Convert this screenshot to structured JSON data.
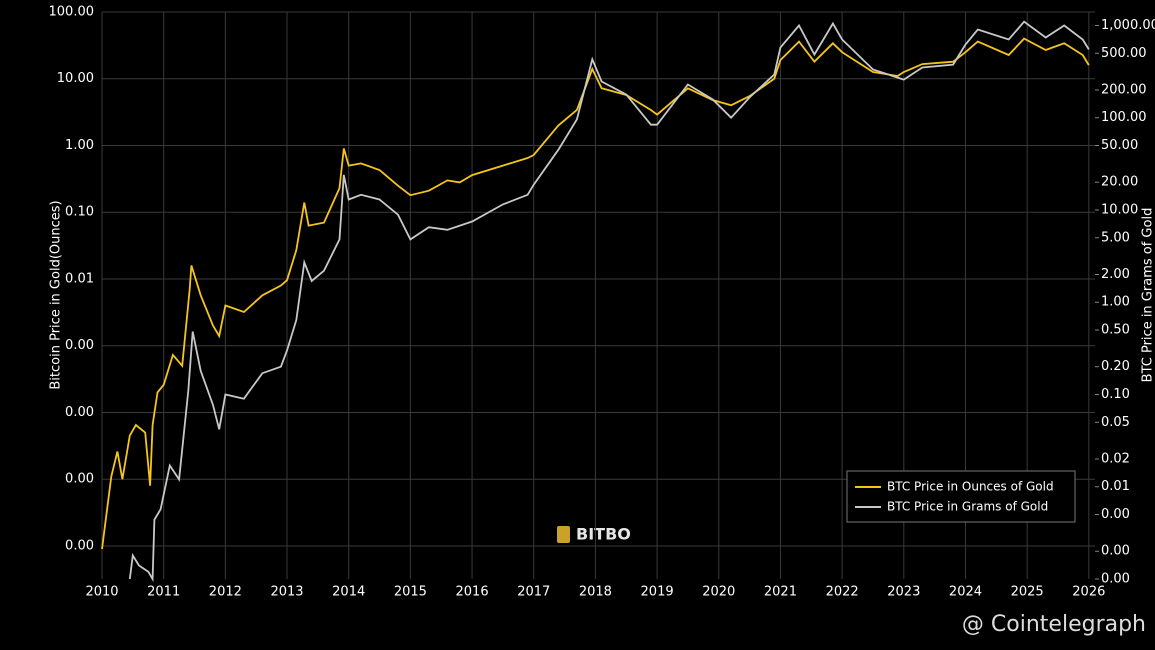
{
  "chart_data": {
    "type": "line",
    "y_label": "Bitcoin Price in Gold(Ounces)",
    "y2_label": "BTC Price in Grams of Gold",
    "watermark": "BITBO",
    "source": "@ Cointelegraph",
    "log_scale": true,
    "grid": true,
    "legend": "lower right",
    "xlim": [
      2010,
      2026.1
    ],
    "xticks": [
      2010,
      2011,
      2012,
      2013,
      2014,
      2015,
      2016,
      2017,
      2018,
      2019,
      2020,
      2021,
      2022,
      2023,
      2024,
      2025,
      2026
    ],
    "ylim": [
      3.2e-07,
      100
    ],
    "yticks": [
      {
        "value": 100,
        "label": "100.00"
      },
      {
        "value": 10,
        "label": "10.00"
      },
      {
        "value": 1,
        "label": "1.00"
      },
      {
        "value": 0.1,
        "label": "0.10"
      },
      {
        "value": 0.01,
        "label": "0.01"
      },
      {
        "value": 0.001,
        "label": "0.00"
      },
      {
        "value": 0.0001,
        "label": "0.00"
      },
      {
        "value": 1e-05,
        "label": "0.00"
      },
      {
        "value": 1e-06,
        "label": "0.00"
      }
    ],
    "y2lim": [
      0.001,
      1400
    ],
    "y2ticks": [
      {
        "value": 1000,
        "label": "1,000.00"
      },
      {
        "value": 500,
        "label": "500.00"
      },
      {
        "value": 200,
        "label": "200.00"
      },
      {
        "value": 100,
        "label": "100.00"
      },
      {
        "value": 50,
        "label": "50.00"
      },
      {
        "value": 20,
        "label": "20.00"
      },
      {
        "value": 10,
        "label": "10.00"
      },
      {
        "value": 5,
        "label": "5.00"
      },
      {
        "value": 2,
        "label": "2.00"
      },
      {
        "value": 1,
        "label": "1.00"
      },
      {
        "value": 0.5,
        "label": "0.50"
      },
      {
        "value": 0.2,
        "label": "0.20"
      },
      {
        "value": 0.1,
        "label": "0.10"
      },
      {
        "value": 0.05,
        "label": "0.05"
      },
      {
        "value": 0.02,
        "label": "0.02"
      },
      {
        "value": 0.01,
        "label": "0.01"
      },
      {
        "value": 0.005,
        "label": "0.00"
      },
      {
        "value": 0.002,
        "label": "0.00"
      },
      {
        "value": 0.001,
        "label": "0.00"
      }
    ],
    "series": [
      {
        "name": "BTC Price in Ounces of Gold",
        "color": "#f5c518",
        "x": [
          2010.0,
          2010.15,
          2010.25,
          2010.33,
          2010.45,
          2010.55,
          2010.7,
          2010.78,
          2010.82,
          2010.9,
          2011.0,
          2011.15,
          2011.3,
          2011.42,
          2011.45,
          2011.6,
          2011.8,
          2011.9,
          2012.0,
          2012.3,
          2012.6,
          2012.9,
          2013.0,
          2013.15,
          2013.28,
          2013.35,
          2013.6,
          2013.85,
          2013.92,
          2014.0,
          2014.2,
          2014.5,
          2014.8,
          2015.0,
          2015.3,
          2015.6,
          2015.8,
          2016.0,
          2016.5,
          2016.9,
          2017.0,
          2017.4,
          2017.7,
          2017.95,
          2018.1,
          2018.5,
          2018.9,
          2019.0,
          2019.5,
          2019.9,
          2020.2,
          2020.5,
          2020.9,
          2021.0,
          2021.3,
          2021.55,
          2021.85,
          2022.0,
          2022.5,
          2022.9,
          2023.0,
          2023.3,
          2023.8,
          2024.0,
          2024.2,
          2024.7,
          2024.95,
          2025.3,
          2025.6,
          2025.9,
          2026.0
        ],
        "values": [
          9e-07,
          1.1e-05,
          2.6e-05,
          1e-05,
          4.5e-05,
          6.5e-05,
          5e-05,
          8e-06,
          6.5e-05,
          0.0002,
          0.00026,
          0.00073,
          0.0005,
          0.0068,
          0.016,
          0.0057,
          0.002,
          0.0014,
          0.004,
          0.0032,
          0.0057,
          0.008,
          0.0096,
          0.027,
          0.14,
          0.063,
          0.07,
          0.23,
          0.9,
          0.5,
          0.54,
          0.43,
          0.25,
          0.18,
          0.21,
          0.3,
          0.28,
          0.36,
          0.5,
          0.65,
          0.72,
          2.0,
          3.4,
          14,
          7.2,
          5.7,
          3.4,
          2.9,
          7.2,
          4.8,
          4.0,
          5.5,
          10,
          19,
          36,
          18,
          34,
          25,
          12.6,
          11,
          12.6,
          16.6,
          18,
          25,
          36,
          22.7,
          40,
          27,
          34,
          22.7,
          16
        ]
      },
      {
        "name": "BTC Price in Grams of Gold",
        "color": "#c8c8c8",
        "axis": "y2",
        "x": [
          2010.45,
          2010.5,
          2010.6,
          2010.75,
          2010.82,
          2010.85,
          2010.95,
          2011.1,
          2011.25,
          2011.4,
          2011.47,
          2011.6,
          2011.8,
          2011.9,
          2012.0,
          2012.3,
          2012.6,
          2012.9,
          2013.0,
          2013.15,
          2013.28,
          2013.4,
          2013.6,
          2013.85,
          2013.92,
          2014.0,
          2014.2,
          2014.5,
          2014.8,
          2015.0,
          2015.3,
          2015.6,
          2016.0,
          2016.5,
          2016.9,
          2017.0,
          2017.4,
          2017.7,
          2017.95,
          2018.1,
          2018.5,
          2018.9,
          2019.0,
          2019.5,
          2019.9,
          2020.2,
          2020.5,
          2020.9,
          2021.0,
          2021.3,
          2021.55,
          2021.85,
          2022.0,
          2022.5,
          2022.9,
          2023.0,
          2023.3,
          2023.8,
          2024.0,
          2024.2,
          2024.7,
          2024.95,
          2025.3,
          2025.6,
          2025.9,
          2026.0
        ],
        "values": [
          0.001,
          0.0018,
          0.0014,
          0.0012,
          0.001,
          0.0044,
          0.0057,
          0.017,
          0.012,
          0.11,
          0.48,
          0.18,
          0.077,
          0.042,
          0.1,
          0.09,
          0.17,
          0.2,
          0.3,
          0.64,
          2.7,
          1.7,
          2.2,
          4.8,
          24,
          13,
          14.6,
          13,
          8.9,
          4.8,
          6.5,
          6.1,
          7.5,
          11.5,
          14.6,
          18.8,
          45,
          96,
          430,
          247,
          178,
          84,
          84,
          229,
          158,
          100,
          166,
          294,
          577,
          1000,
          485,
          1050,
          705,
          333,
          272,
          259,
          350,
          377,
          622,
          905,
          705,
          1100,
          740,
          1000,
          705,
          550
        ]
      }
    ]
  }
}
